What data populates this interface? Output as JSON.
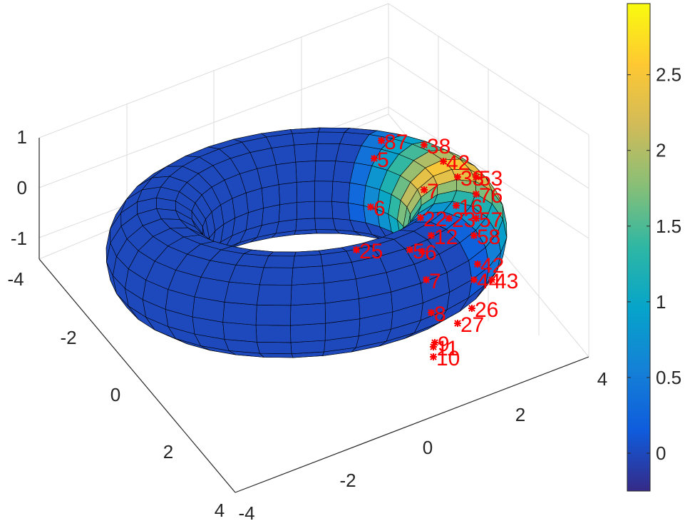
{
  "chart_data": {
    "type": "surface3d",
    "title": "",
    "xlabel": "",
    "ylabel": "",
    "zlabel": "",
    "x_axis": {
      "ticks": [
        -4,
        -2,
        0,
        2,
        4
      ],
      "tick_labels": [
        "-4",
        "-2",
        "0",
        "2",
        "4"
      ],
      "range": [
        -4,
        4
      ]
    },
    "y_axis": {
      "ticks": [
        -4,
        -2,
        0,
        2,
        4
      ],
      "tick_labels": [
        "-4",
        "-2",
        "0",
        "2",
        "4"
      ],
      "range": [
        -4,
        4
      ]
    },
    "z_axis": {
      "ticks": [
        -1,
        0,
        1
      ],
      "tick_labels": [
        "-1",
        "0",
        "1"
      ],
      "range": [
        -1.3,
        1.3
      ]
    },
    "grid": true,
    "surface": {
      "shape": "torus-like ring",
      "base_value": 0,
      "colormap": "parula",
      "grid_lines": "black"
    },
    "colorbar": {
      "position": "right",
      "range": [
        -0.25,
        2.97
      ],
      "ticks": [
        0,
        0.5,
        1,
        1.5,
        2,
        2.5
      ],
      "tick_labels": [
        "0",
        "0.5",
        "1",
        "1.5",
        "2",
        "2.5"
      ],
      "colors": [
        "#352a87",
        "#0f5cdd",
        "#1481d6",
        "#06a4ca",
        "#2eb7a4",
        "#87bf77",
        "#d1bb59",
        "#fec832",
        "#f9fb0e"
      ]
    },
    "markers": {
      "symbol": "*",
      "color": "#ff0000",
      "labels": [
        "87",
        "38",
        "5",
        "42",
        "33",
        "53",
        "7",
        "76",
        "16",
        "6",
        "57",
        "22",
        "23",
        "12",
        "58",
        "25",
        "5",
        "6",
        "7",
        "42",
        "44",
        "43",
        "8",
        "26",
        "27",
        "9",
        "11",
        "10"
      ]
    }
  }
}
